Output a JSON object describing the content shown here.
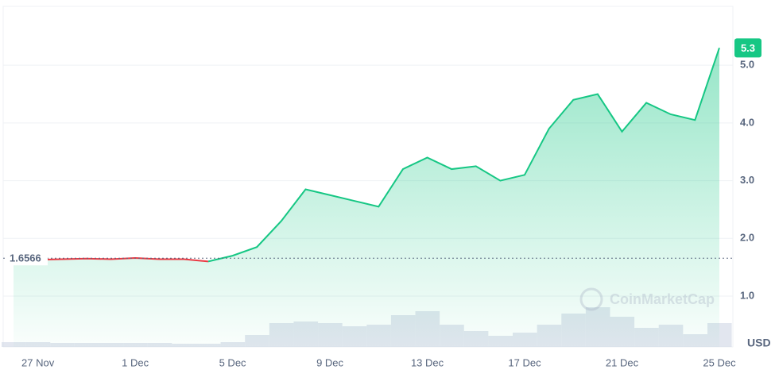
{
  "chart_data": {
    "type": "line",
    "x": [
      "26 Nov",
      "27 Nov",
      "28 Nov",
      "29 Nov",
      "30 Nov",
      "1 Dec",
      "2 Dec",
      "3 Dec",
      "4 Dec",
      "5 Dec",
      "6 Dec",
      "7 Dec",
      "8 Dec",
      "9 Dec",
      "10 Dec",
      "11 Dec",
      "12 Dec",
      "13 Dec",
      "14 Dec",
      "15 Dec",
      "16 Dec",
      "17 Dec",
      "18 Dec",
      "19 Dec",
      "20 Dec",
      "21 Dec",
      "22 Dec",
      "23 Dec",
      "24 Dec",
      "25 Dec"
    ],
    "series": [
      {
        "name": "Price",
        "color": "#16c784",
        "values": [
          1.62,
          1.63,
          1.64,
          1.65,
          1.64,
          1.66,
          1.64,
          1.64,
          1.6,
          1.7,
          1.85,
          2.3,
          2.85,
          2.75,
          2.65,
          2.55,
          3.2,
          3.4,
          3.2,
          3.25,
          3.0,
          3.1,
          3.9,
          4.4,
          4.5,
          3.85,
          4.35,
          4.15,
          4.05,
          5.3
        ]
      }
    ],
    "volume": [
      6,
      6,
      5,
      5,
      5,
      5,
      5,
      4,
      4,
      6,
      15,
      30,
      32,
      30,
      26,
      28,
      40,
      45,
      28,
      20,
      14,
      18,
      28,
      42,
      50,
      38,
      24,
      28,
      16,
      30
    ],
    "baseline": {
      "value": 1.6566,
      "label": "1.6566",
      "color": "#ea3943"
    },
    "current_value": "5.3",
    "currency": "USD",
    "watermark": "CoinMarketCap",
    "ylim": [
      0.12,
      6.02
    ],
    "yticks": [
      {
        "value": 1,
        "label": "1.0"
      },
      {
        "value": 2,
        "label": "2.0"
      },
      {
        "value": 3,
        "label": "3.0"
      },
      {
        "value": 4,
        "label": "4.0"
      },
      {
        "value": 5,
        "label": "5.0"
      }
    ],
    "xticks": [
      "27 Nov",
      "1 Dec",
      "5 Dec",
      "9 Dec",
      "13 Dec",
      "17 Dec",
      "21 Dec",
      "25 Dec"
    ],
    "grid": true
  }
}
